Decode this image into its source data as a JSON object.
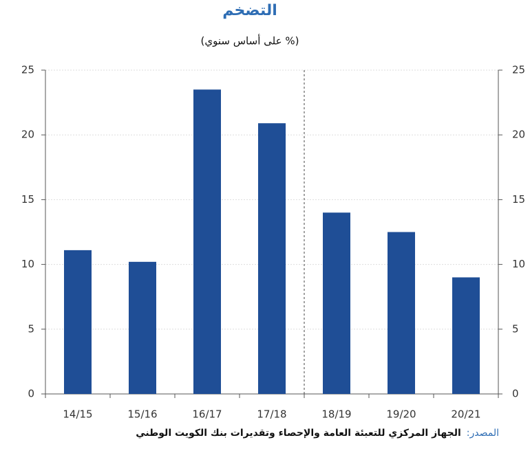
{
  "chart_data": {
    "type": "bar",
    "title": "التضخم",
    "subtitle": "(% على أساس سنوي)",
    "categories": [
      "14/15",
      "15/16",
      "16/17",
      "17/18",
      "18/19",
      "19/20",
      "20/21"
    ],
    "values": [
      11.1,
      10.2,
      23.5,
      20.9,
      14.0,
      12.5,
      9.0
    ],
    "color": "#1f4e96",
    "ylim": [
      0,
      25
    ],
    "yticks": [
      0,
      5,
      10,
      15,
      20,
      25
    ],
    "y2lim": [
      0,
      25
    ],
    "y2ticks": [
      0,
      5,
      10,
      15,
      20,
      25
    ],
    "grid": true,
    "source_label": "المصدر:",
    "source_text": "الجهاز المركزي للتعبئة العامة والإحصاء وتقديرات بنك الكويت الوطني"
  }
}
